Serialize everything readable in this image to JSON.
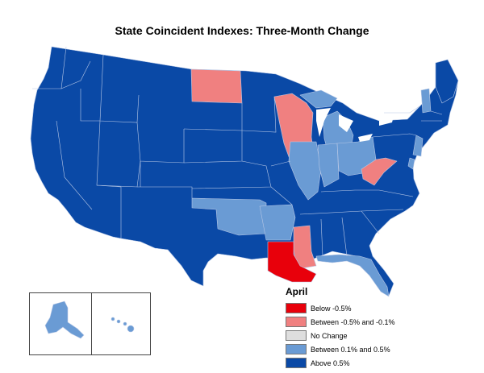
{
  "title": "State Coincident Indexes: Three-Month Change",
  "legend": {
    "title": "April",
    "items": [
      {
        "label": "Below -0.5%",
        "color": "#e8000b"
      },
      {
        "label": "Between -0.5% and -0.1%",
        "color": "#f08080"
      },
      {
        "label": "No Change",
        "color": "#dedede"
      },
      {
        "label": "Between 0.1% and 0.5%",
        "color": "#6a9bd4"
      },
      {
        "label": "Above 0.5%",
        "color": "#0a49a6"
      }
    ]
  },
  "regions": {
    "below_neg_0_5": [
      "Louisiana"
    ],
    "between_neg_0_5_and_neg_0_1": [
      "North Dakota",
      "Wisconsin",
      "Mississippi",
      "West Virginia"
    ],
    "between_0_1_and_0_5": [
      "Illinois",
      "Indiana",
      "Ohio",
      "Michigan",
      "Oklahoma",
      "Arkansas",
      "Florida",
      "Vermont",
      "New Jersey",
      "Delaware",
      "Alaska",
      "Hawaii"
    ],
    "above_0_5": [
      "Washington",
      "Oregon",
      "California",
      "Nevada",
      "Idaho",
      "Montana",
      "Wyoming",
      "Utah",
      "Arizona",
      "Colorado",
      "New Mexico",
      "Texas",
      "South Dakota",
      "Nebraska",
      "Kansas",
      "Minnesota",
      "Iowa",
      "Missouri",
      "Kentucky",
      "Tennessee",
      "Alabama",
      "Georgia",
      "South Carolina",
      "North Carolina",
      "Virginia",
      "Maryland",
      "Pennsylvania",
      "New York",
      "Connecticut",
      "Rhode Island",
      "Massachusetts",
      "New Hampshire",
      "Maine"
    ]
  }
}
